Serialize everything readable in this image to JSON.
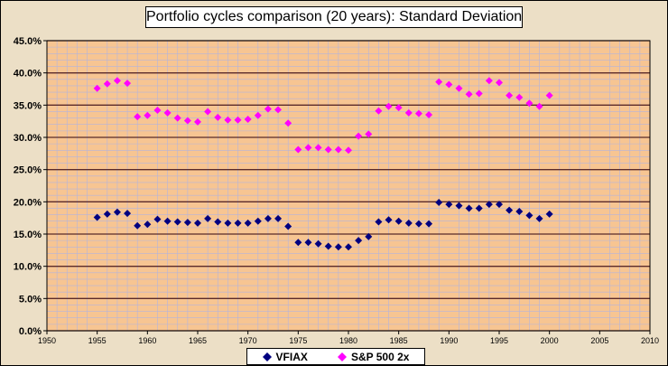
{
  "chart_data": {
    "type": "scatter",
    "title": "Portfolio cycles comparison (20 years): Standard Deviation",
    "xlabel": "",
    "ylabel": "",
    "xlim": [
      1950,
      2010
    ],
    "ylim": [
      0,
      45
    ],
    "x_ticks": [
      1950,
      1955,
      1960,
      1965,
      1970,
      1975,
      1980,
      1985,
      1990,
      1995,
      2000,
      2005,
      2010
    ],
    "y_ticks": [
      "0.0%",
      "5.0%",
      "10.0%",
      "15.0%",
      "20.0%",
      "25.0%",
      "30.0%",
      "35.0%",
      "40.0%",
      "45.0%"
    ],
    "legend_position": "bottom",
    "grid": true,
    "plot_background": "#f7c592",
    "minor_grid_color": "#b4b4dc",
    "major_grid_color": "#5a2a2a",
    "x": [
      1955,
      1956,
      1957,
      1958,
      1959,
      1960,
      1961,
      1962,
      1963,
      1964,
      1965,
      1966,
      1967,
      1968,
      1969,
      1970,
      1971,
      1972,
      1973,
      1974,
      1975,
      1976,
      1977,
      1978,
      1979,
      1980,
      1981,
      1982,
      1983,
      1984,
      1985,
      1986,
      1987,
      1988,
      1989,
      1990,
      1991,
      1992,
      1993,
      1994,
      1995,
      1996,
      1997,
      1998,
      1999,
      2000
    ],
    "series": [
      {
        "name": "VFIAX",
        "color": "#000080",
        "marker": "diamond",
        "values": [
          17.6,
          18.1,
          18.4,
          18.2,
          16.3,
          16.5,
          17.3,
          17.0,
          16.9,
          16.8,
          16.7,
          17.4,
          16.9,
          16.7,
          16.7,
          16.7,
          17.0,
          17.4,
          17.4,
          16.2,
          13.7,
          13.7,
          13.5,
          13.1,
          13.0,
          13.0,
          14.0,
          14.6,
          16.9,
          17.2,
          17.0,
          16.7,
          16.6,
          16.6,
          19.9,
          19.6,
          19.4,
          19.0,
          19.0,
          19.6,
          19.6,
          18.7,
          18.5,
          17.9,
          17.4,
          18.1
        ]
      },
      {
        "name": "S&P 500 2x",
        "color": "#ff00ff",
        "marker": "diamond",
        "values": [
          37.6,
          38.3,
          38.8,
          38.4,
          33.2,
          33.4,
          34.2,
          33.8,
          33.0,
          32.6,
          32.4,
          34.0,
          33.1,
          32.7,
          32.7,
          32.8,
          33.4,
          34.4,
          34.3,
          32.2,
          28.1,
          28.4,
          28.4,
          28.1,
          28.1,
          28.0,
          30.2,
          30.5,
          34.1,
          34.8,
          34.6,
          33.8,
          33.7,
          33.5,
          38.6,
          38.2,
          37.6,
          36.7,
          36.8,
          38.8,
          38.5,
          36.5,
          36.2,
          35.3,
          34.8,
          36.5
        ]
      }
    ]
  }
}
